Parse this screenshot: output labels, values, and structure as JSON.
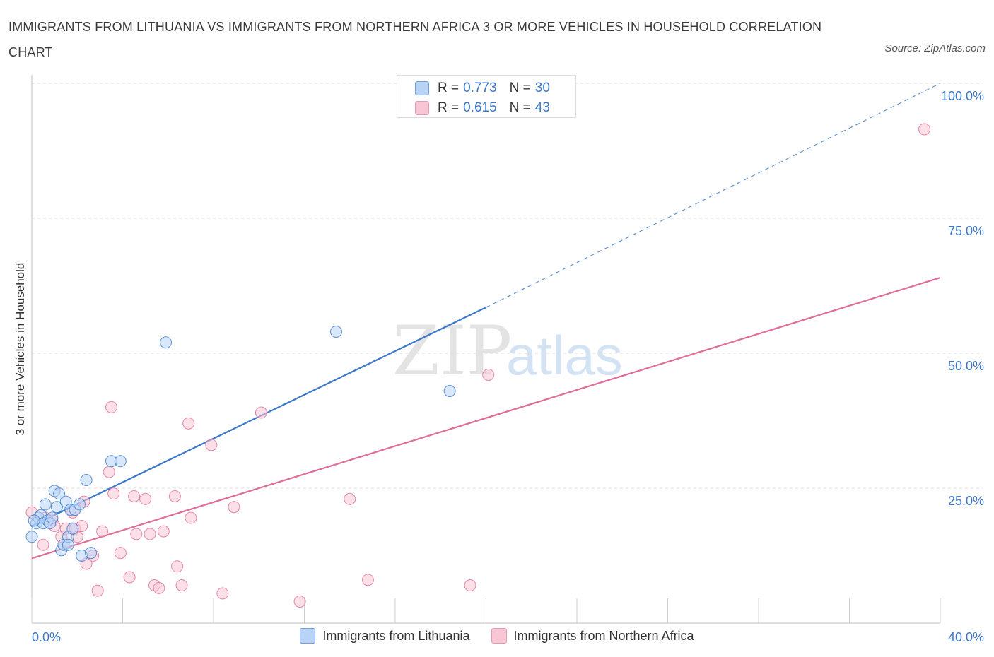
{
  "title": "IMMIGRANTS FROM LITHUANIA VS IMMIGRANTS FROM NORTHERN AFRICA 3 OR MORE VEHICLES IN HOUSEHOLD CORRELATION CHART",
  "source": "Source: ZipAtlas.com",
  "watermark": {
    "zip": "ZIP",
    "atlas": "atlas"
  },
  "stats": {
    "r_label": "R =",
    "n_label": "N =",
    "series1": {
      "r": "0.773",
      "n": "30"
    },
    "series2": {
      "r": "0.615",
      "n": "43"
    }
  },
  "legend": {
    "series1": "Immigrants from Lithuania",
    "series2": "Immigrants from Northern Africa"
  },
  "colors": {
    "blue": "#3b78c9",
    "blue_fill": "#b8d3f5",
    "pink": "#e06c98",
    "pink_fill": "#f9c6d6",
    "axis_text": "#3b78c9"
  },
  "chart_data": {
    "type": "scatter",
    "ylabel": "3 or more Vehicles in Household",
    "xlabel": "",
    "xlim": [
      0,
      40
    ],
    "ylim": [
      0,
      100
    ],
    "x_tick_labels": {
      "min": "0.0%",
      "max": "40.0%"
    },
    "y_ticks": [
      {
        "value": 25,
        "label": "25.0%"
      },
      {
        "value": 50,
        "label": "50.0%"
      },
      {
        "value": 75,
        "label": "75.0%"
      },
      {
        "value": 100,
        "label": "100.0%"
      }
    ],
    "series": [
      {
        "name": "Immigrants from Lithuania",
        "color": "#3b78c9",
        "fill": "#b8d3f5",
        "points": [
          [
            0.0,
            16.0
          ],
          [
            0.2,
            18.5
          ],
          [
            0.3,
            19.5
          ],
          [
            0.4,
            20.0
          ],
          [
            0.5,
            18.5
          ],
          [
            0.6,
            22.0
          ],
          [
            0.7,
            19.0
          ],
          [
            0.8,
            18.5
          ],
          [
            0.9,
            19.5
          ],
          [
            1.0,
            24.5
          ],
          [
            1.1,
            21.5
          ],
          [
            1.2,
            24.0
          ],
          [
            1.3,
            13.5
          ],
          [
            1.4,
            14.5
          ],
          [
            1.5,
            22.5
          ],
          [
            1.6,
            16.0
          ],
          [
            1.6,
            14.5
          ],
          [
            1.7,
            21.0
          ],
          [
            1.8,
            17.5
          ],
          [
            1.9,
            21.0
          ],
          [
            2.1,
            22.0
          ],
          [
            2.2,
            12.5
          ],
          [
            2.4,
            26.5
          ],
          [
            2.6,
            13.0
          ],
          [
            3.5,
            30.0
          ],
          [
            3.9,
            30.0
          ],
          [
            5.9,
            52.0
          ],
          [
            13.4,
            54.0
          ],
          [
            18.4,
            43.0
          ],
          [
            0.1,
            19.0
          ]
        ],
        "trend": {
          "x": [
            0,
            20
          ],
          "y": [
            18,
            58.5
          ],
          "extended_to": [
            40,
            100
          ]
        }
      },
      {
        "name": "Immigrants from Northern Africa",
        "color": "#e06c98",
        "fill": "#f9c6d6",
        "points": [
          [
            0.0,
            20.5
          ],
          [
            0.5,
            14.5
          ],
          [
            0.9,
            19.0
          ],
          [
            1.0,
            18.0
          ],
          [
            1.3,
            16.0
          ],
          [
            1.5,
            17.5
          ],
          [
            1.8,
            20.5
          ],
          [
            1.9,
            17.5
          ],
          [
            2.0,
            16.0
          ],
          [
            2.2,
            18.0
          ],
          [
            2.3,
            22.5
          ],
          [
            2.4,
            11.0
          ],
          [
            2.7,
            12.5
          ],
          [
            2.9,
            6.0
          ],
          [
            3.1,
            17.0
          ],
          [
            3.4,
            28.0
          ],
          [
            3.5,
            40.0
          ],
          [
            3.6,
            24.0
          ],
          [
            3.9,
            13.0
          ],
          [
            4.3,
            8.5
          ],
          [
            4.5,
            23.5
          ],
          [
            4.6,
            16.5
          ],
          [
            5.0,
            23.0
          ],
          [
            5.2,
            16.5
          ],
          [
            5.4,
            7.0
          ],
          [
            5.6,
            6.5
          ],
          [
            5.8,
            17.0
          ],
          [
            6.3,
            23.5
          ],
          [
            6.4,
            10.5
          ],
          [
            6.6,
            7.0
          ],
          [
            6.9,
            37.0
          ],
          [
            7.0,
            19.5
          ],
          [
            7.9,
            33.0
          ],
          [
            8.4,
            5.5
          ],
          [
            8.9,
            21.5
          ],
          [
            10.1,
            39.0
          ],
          [
            11.8,
            4.0
          ],
          [
            14.0,
            23.0
          ],
          [
            14.8,
            8.0
          ],
          [
            19.3,
            7.0
          ],
          [
            20.1,
            46.0
          ],
          [
            39.3,
            91.5
          ],
          [
            0.6,
            19.5
          ]
        ],
        "trend": {
          "x": [
            0,
            40
          ],
          "y": [
            12,
            64
          ]
        }
      }
    ]
  }
}
